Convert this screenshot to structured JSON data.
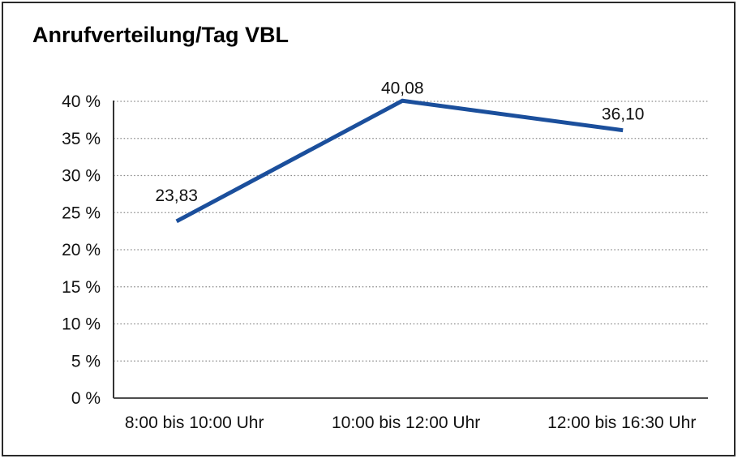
{
  "chart_data": {
    "type": "line",
    "title": "Anrufverteilung/Tag VBL",
    "categories": [
      "8:00 bis 10:00 Uhr",
      "10:00 bis 12:00 Uhr",
      "12:00 bis 16:30 Uhr"
    ],
    "values": [
      23.83,
      40.08,
      36.1
    ],
    "value_labels": [
      "23,83",
      "40,08",
      "36,10"
    ],
    "xlabel": "",
    "ylabel": "",
    "ylim": [
      0,
      40
    ],
    "ytick_step": 5,
    "ytick_labels": [
      "0 %",
      "5 %",
      "10 %",
      "15 %",
      "20 %",
      "25 %",
      "30 %",
      "35 %",
      "40 %"
    ],
    "grid": "horizontal-dotted",
    "legend": "none",
    "colors": {
      "line": "#1B4F9C",
      "grid": "#8a8a8a",
      "y_axis": "#333333",
      "x_axis": "#4d4d4d",
      "text": "#111111",
      "frame": "#2a2a2a",
      "background": "#ffffff"
    }
  }
}
